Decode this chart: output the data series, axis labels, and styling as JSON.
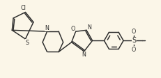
{
  "bg_color": "#fbf6e8",
  "line_color": "#2a2a2a",
  "lw": 1.05,
  "figsize": [
    2.32,
    1.12
  ],
  "dpi": 100,
  "xlim": [
    0,
    10
  ],
  "ylim": [
    0,
    4.3
  ]
}
